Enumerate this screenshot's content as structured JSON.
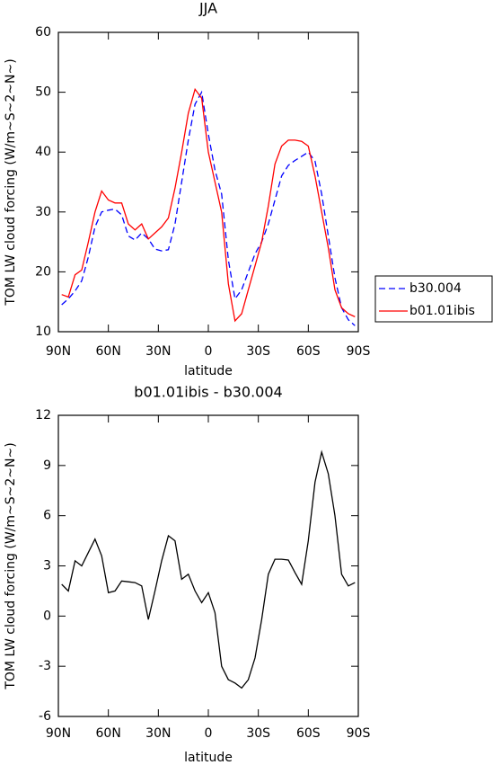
{
  "chart_data": [
    {
      "type": "line",
      "title": "JJA",
      "xlabel": "latitude",
      "ylabel": "TOM LW cloud forcing (W/m~S~2~N~)",
      "x": [
        88,
        84,
        80,
        76,
        72,
        68,
        64,
        60,
        56,
        52,
        48,
        44,
        40,
        36,
        32,
        28,
        24,
        20,
        16,
        12,
        8,
        4,
        0,
        -4,
        -8,
        -12,
        -16,
        -20,
        -24,
        -28,
        -32,
        -36,
        -40,
        -44,
        -48,
        -52,
        -56,
        -60,
        -64,
        -68,
        -72,
        -76,
        -80,
        -84,
        -88
      ],
      "series": [
        {
          "name": "b30.004",
          "color": "#0000ff",
          "dash": true,
          "values": [
            14.5,
            15.5,
            16.8,
            18.5,
            22.5,
            27.5,
            30,
            30.3,
            30.5,
            29.5,
            26,
            25.3,
            26.5,
            25.5,
            23.8,
            23.5,
            23.7,
            28,
            35,
            42,
            48,
            50,
            43,
            37,
            33,
            22,
            15.5,
            17,
            20,
            23,
            25,
            28,
            32,
            36,
            37.8,
            38.6,
            39.3,
            40,
            38.5,
            33,
            26,
            19,
            14,
            12,
            11
          ]
        },
        {
          "name": "b01.01ibis",
          "color": "#ff0000",
          "dash": false,
          "values": [
            16.2,
            15.8,
            19.5,
            20.3,
            25,
            30,
            33.5,
            32,
            31.5,
            31.5,
            28,
            27,
            28,
            25.5,
            26.5,
            27.5,
            29,
            34,
            40,
            46.5,
            50.5,
            49,
            40,
            35,
            30,
            18,
            11.8,
            13,
            17,
            21,
            25,
            31,
            38,
            41,
            42,
            42,
            41.8,
            41,
            36,
            30,
            24,
            17,
            14,
            13,
            12.5
          ]
        }
      ],
      "xlim": [
        90,
        -90
      ],
      "xticks": [
        {
          "value": 90,
          "label": "90N"
        },
        {
          "value": 60,
          "label": "60N"
        },
        {
          "value": 30,
          "label": "30N"
        },
        0,
        {
          "value": -30,
          "label": "30S"
        },
        {
          "value": -60,
          "label": "60S"
        },
        {
          "value": -90,
          "label": "90S"
        }
      ],
      "ylim": [
        10,
        60
      ],
      "yticks": [
        10,
        20,
        30,
        40,
        50,
        60
      ],
      "legend": "right"
    },
    {
      "type": "line",
      "title": "b01.01ibis - b30.004",
      "xlabel": "latitude",
      "ylabel": "TOM LW cloud forcing (W/m~S~2~N~)",
      "x": [
        88,
        84,
        80,
        76,
        72,
        68,
        64,
        60,
        56,
        52,
        48,
        44,
        40,
        36,
        32,
        28,
        24,
        20,
        16,
        12,
        8,
        4,
        0,
        -4,
        -8,
        -12,
        -16,
        -20,
        -24,
        -28,
        -32,
        -36,
        -40,
        -44,
        -48,
        -52,
        -56,
        -60,
        -64,
        -68,
        -72,
        -76,
        -80,
        -84,
        -88
      ],
      "color": "#000000",
      "values": [
        1.9,
        1.5,
        3.3,
        3.0,
        3.8,
        4.6,
        3.6,
        1.4,
        1.5,
        2.1,
        2.05,
        2.0,
        1.8,
        -0.2,
        1.5,
        3.3,
        4.8,
        4.5,
        2.2,
        2.5,
        1.5,
        0.8,
        1.4,
        0.2,
        -3.0,
        -3.8,
        -4.0,
        -4.3,
        -3.8,
        -2.5,
        -0.2,
        2.5,
        3.4,
        3.4,
        3.35,
        2.6,
        1.9,
        4.5,
        8,
        9.8,
        8.5,
        6,
        2.5,
        1.8,
        2.0
      ],
      "xlim": [
        90,
        -90
      ],
      "xticks": [
        {
          "value": 90,
          "label": "90N"
        },
        {
          "value": 60,
          "label": "60N"
        },
        {
          "value": 30,
          "label": "30N"
        },
        0,
        {
          "value": -30,
          "label": "30S"
        },
        {
          "value": -60,
          "label": "60S"
        },
        {
          "value": -90,
          "label": "90S"
        }
      ],
      "ylim": [
        -6,
        12
      ],
      "yticks": [
        -6,
        -3,
        0,
        3,
        6,
        9,
        12
      ]
    }
  ]
}
